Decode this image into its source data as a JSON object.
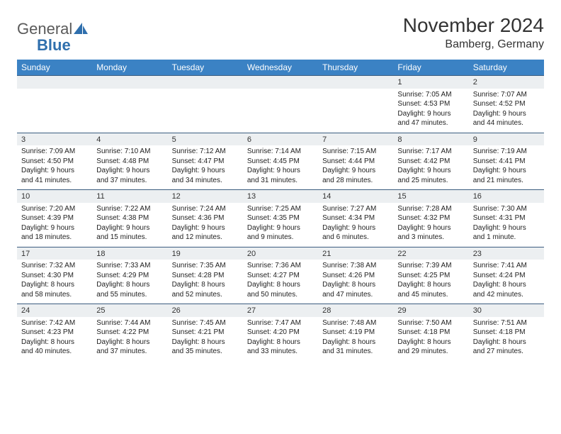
{
  "brand": {
    "part1": "General",
    "part2": "Blue"
  },
  "title": "November 2024",
  "location": "Bamberg, Germany",
  "dow_bg": "#3b82c4",
  "dow_fg": "#ffffff",
  "daynum_bg": "#eceff1",
  "border_color": "#3b5d80",
  "text_color": "#222222",
  "font_family": "Arial",
  "title_fontsize": 28,
  "location_fontsize": 16,
  "dow_fontsize": 12,
  "daynum_fontsize": 11,
  "detail_fontsize": 10,
  "days_of_week": [
    "Sunday",
    "Monday",
    "Tuesday",
    "Wednesday",
    "Thursday",
    "Friday",
    "Saturday"
  ],
  "weeks": [
    [
      null,
      null,
      null,
      null,
      null,
      {
        "n": "1",
        "sunrise": "Sunrise: 7:05 AM",
        "sunset": "Sunset: 4:53 PM",
        "daylight": "Daylight: 9 hours and 47 minutes."
      },
      {
        "n": "2",
        "sunrise": "Sunrise: 7:07 AM",
        "sunset": "Sunset: 4:52 PM",
        "daylight": "Daylight: 9 hours and 44 minutes."
      }
    ],
    [
      {
        "n": "3",
        "sunrise": "Sunrise: 7:09 AM",
        "sunset": "Sunset: 4:50 PM",
        "daylight": "Daylight: 9 hours and 41 minutes."
      },
      {
        "n": "4",
        "sunrise": "Sunrise: 7:10 AM",
        "sunset": "Sunset: 4:48 PM",
        "daylight": "Daylight: 9 hours and 37 minutes."
      },
      {
        "n": "5",
        "sunrise": "Sunrise: 7:12 AM",
        "sunset": "Sunset: 4:47 PM",
        "daylight": "Daylight: 9 hours and 34 minutes."
      },
      {
        "n": "6",
        "sunrise": "Sunrise: 7:14 AM",
        "sunset": "Sunset: 4:45 PM",
        "daylight": "Daylight: 9 hours and 31 minutes."
      },
      {
        "n": "7",
        "sunrise": "Sunrise: 7:15 AM",
        "sunset": "Sunset: 4:44 PM",
        "daylight": "Daylight: 9 hours and 28 minutes."
      },
      {
        "n": "8",
        "sunrise": "Sunrise: 7:17 AM",
        "sunset": "Sunset: 4:42 PM",
        "daylight": "Daylight: 9 hours and 25 minutes."
      },
      {
        "n": "9",
        "sunrise": "Sunrise: 7:19 AM",
        "sunset": "Sunset: 4:41 PM",
        "daylight": "Daylight: 9 hours and 21 minutes."
      }
    ],
    [
      {
        "n": "10",
        "sunrise": "Sunrise: 7:20 AM",
        "sunset": "Sunset: 4:39 PM",
        "daylight": "Daylight: 9 hours and 18 minutes."
      },
      {
        "n": "11",
        "sunrise": "Sunrise: 7:22 AM",
        "sunset": "Sunset: 4:38 PM",
        "daylight": "Daylight: 9 hours and 15 minutes."
      },
      {
        "n": "12",
        "sunrise": "Sunrise: 7:24 AM",
        "sunset": "Sunset: 4:36 PM",
        "daylight": "Daylight: 9 hours and 12 minutes."
      },
      {
        "n": "13",
        "sunrise": "Sunrise: 7:25 AM",
        "sunset": "Sunset: 4:35 PM",
        "daylight": "Daylight: 9 hours and 9 minutes."
      },
      {
        "n": "14",
        "sunrise": "Sunrise: 7:27 AM",
        "sunset": "Sunset: 4:34 PM",
        "daylight": "Daylight: 9 hours and 6 minutes."
      },
      {
        "n": "15",
        "sunrise": "Sunrise: 7:28 AM",
        "sunset": "Sunset: 4:32 PM",
        "daylight": "Daylight: 9 hours and 3 minutes."
      },
      {
        "n": "16",
        "sunrise": "Sunrise: 7:30 AM",
        "sunset": "Sunset: 4:31 PM",
        "daylight": "Daylight: 9 hours and 1 minute."
      }
    ],
    [
      {
        "n": "17",
        "sunrise": "Sunrise: 7:32 AM",
        "sunset": "Sunset: 4:30 PM",
        "daylight": "Daylight: 8 hours and 58 minutes."
      },
      {
        "n": "18",
        "sunrise": "Sunrise: 7:33 AM",
        "sunset": "Sunset: 4:29 PM",
        "daylight": "Daylight: 8 hours and 55 minutes."
      },
      {
        "n": "19",
        "sunrise": "Sunrise: 7:35 AM",
        "sunset": "Sunset: 4:28 PM",
        "daylight": "Daylight: 8 hours and 52 minutes."
      },
      {
        "n": "20",
        "sunrise": "Sunrise: 7:36 AM",
        "sunset": "Sunset: 4:27 PM",
        "daylight": "Daylight: 8 hours and 50 minutes."
      },
      {
        "n": "21",
        "sunrise": "Sunrise: 7:38 AM",
        "sunset": "Sunset: 4:26 PM",
        "daylight": "Daylight: 8 hours and 47 minutes."
      },
      {
        "n": "22",
        "sunrise": "Sunrise: 7:39 AM",
        "sunset": "Sunset: 4:25 PM",
        "daylight": "Daylight: 8 hours and 45 minutes."
      },
      {
        "n": "23",
        "sunrise": "Sunrise: 7:41 AM",
        "sunset": "Sunset: 4:24 PM",
        "daylight": "Daylight: 8 hours and 42 minutes."
      }
    ],
    [
      {
        "n": "24",
        "sunrise": "Sunrise: 7:42 AM",
        "sunset": "Sunset: 4:23 PM",
        "daylight": "Daylight: 8 hours and 40 minutes."
      },
      {
        "n": "25",
        "sunrise": "Sunrise: 7:44 AM",
        "sunset": "Sunset: 4:22 PM",
        "daylight": "Daylight: 8 hours and 37 minutes."
      },
      {
        "n": "26",
        "sunrise": "Sunrise: 7:45 AM",
        "sunset": "Sunset: 4:21 PM",
        "daylight": "Daylight: 8 hours and 35 minutes."
      },
      {
        "n": "27",
        "sunrise": "Sunrise: 7:47 AM",
        "sunset": "Sunset: 4:20 PM",
        "daylight": "Daylight: 8 hours and 33 minutes."
      },
      {
        "n": "28",
        "sunrise": "Sunrise: 7:48 AM",
        "sunset": "Sunset: 4:19 PM",
        "daylight": "Daylight: 8 hours and 31 minutes."
      },
      {
        "n": "29",
        "sunrise": "Sunrise: 7:50 AM",
        "sunset": "Sunset: 4:18 PM",
        "daylight": "Daylight: 8 hours and 29 minutes."
      },
      {
        "n": "30",
        "sunrise": "Sunrise: 7:51 AM",
        "sunset": "Sunset: 4:18 PM",
        "daylight": "Daylight: 8 hours and 27 minutes."
      }
    ]
  ]
}
